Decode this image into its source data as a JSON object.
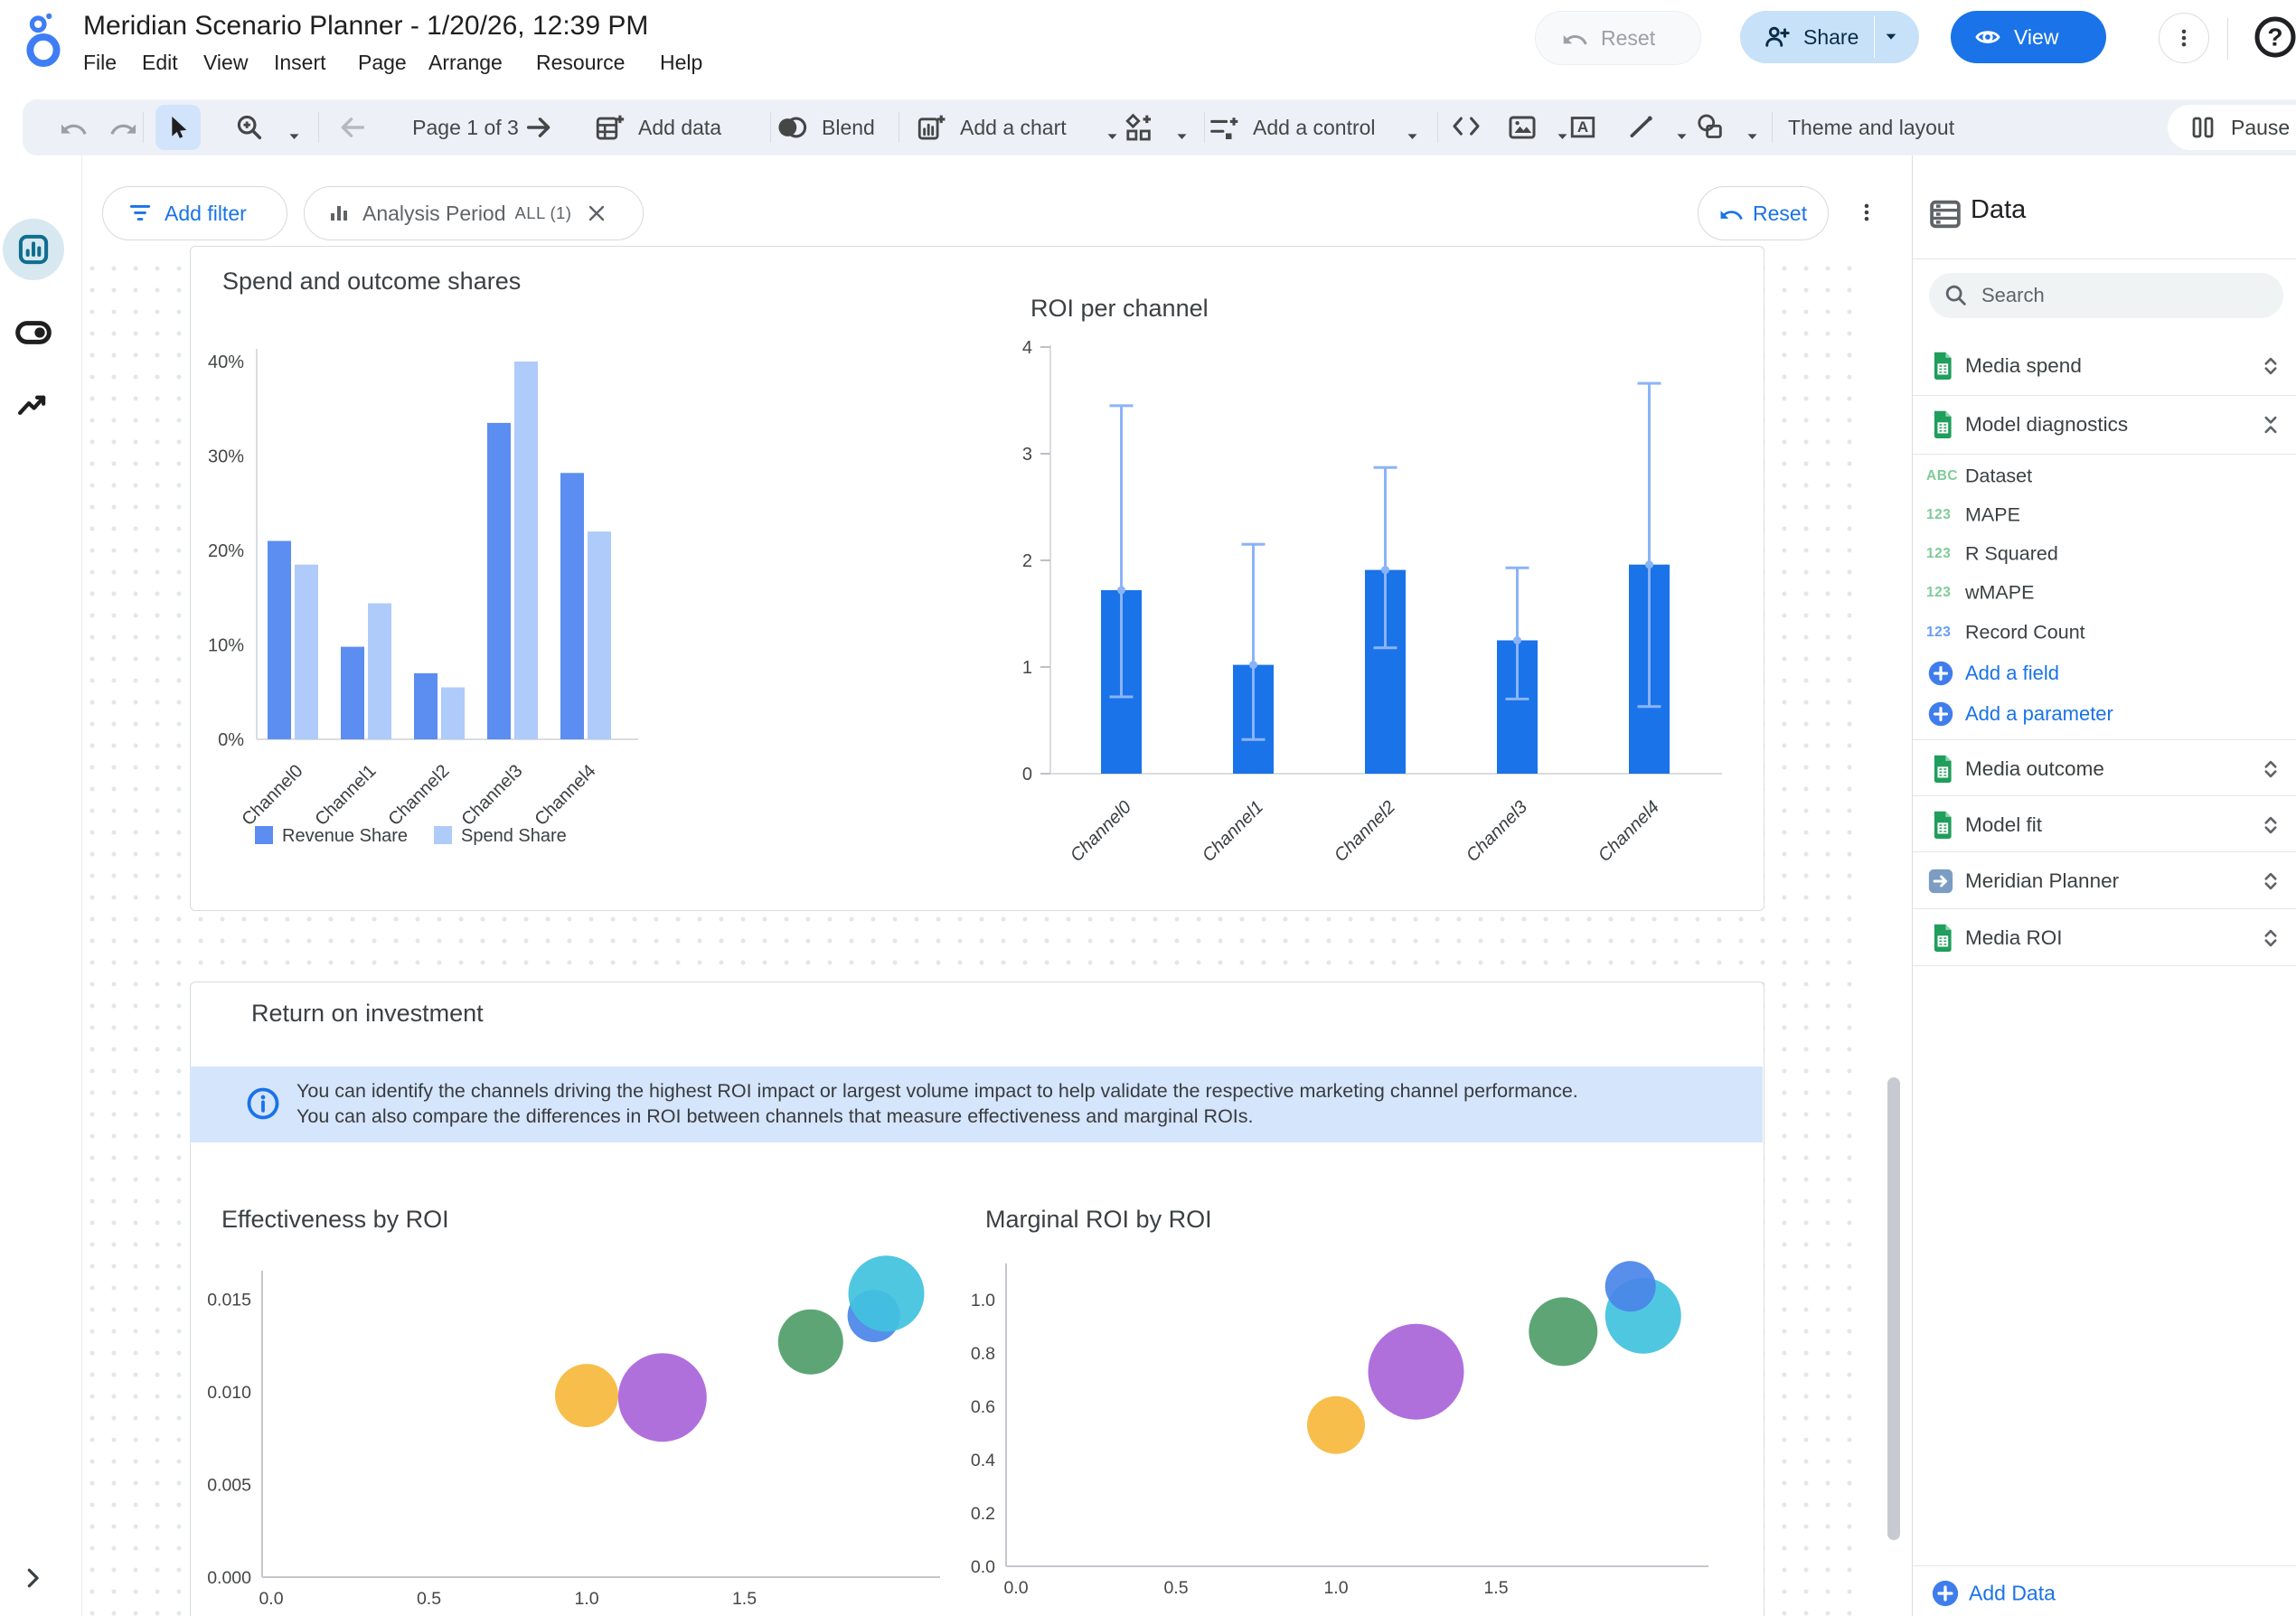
{
  "app": {
    "logo": "looker-studio-logo",
    "title": "Meridian Scenario Planner - 1/20/26, 12:39 PM",
    "menu": [
      "File",
      "Edit",
      "View",
      "Insert",
      "Page",
      "Arrange",
      "Resource",
      "Help"
    ],
    "reset_label": "Reset",
    "share_label": "Share",
    "view_label": "View",
    "help_label": "?"
  },
  "toolbar": {
    "page_indicator": "Page 1 of 3",
    "add_data_label": "Add data",
    "blend_label": "Blend",
    "add_chart_label": "Add a chart",
    "add_control_label": "Add a control",
    "theme_label": "Theme and layout",
    "pause_label": "Pause u"
  },
  "filter_bar": {
    "add_filter_label": "Add filter",
    "filter_chip": {
      "name": "Analysis Period",
      "badge": "ALL (1)"
    },
    "reset_label": "Reset"
  },
  "report": {
    "section_title": "Return on investment",
    "info_text": "You can identify the channels driving the highest ROI impact or largest volume impact to help validate the respective marketing channel performance. You can also compare the differences in ROI between channels that measure effectiveness and marginal ROIs."
  },
  "chart_data": [
    {
      "type": "bar",
      "title": "Spend and outcome shares",
      "categories": [
        "Channel0",
        "Channel1",
        "Channel2",
        "Channel3",
        "Channel4"
      ],
      "series": [
        {
          "name": "Revenue Share",
          "color": "#5C8DF0",
          "values": [
            21,
            9.8,
            7,
            33.5,
            28.2
          ]
        },
        {
          "name": "Spend Share",
          "color": "#AECBFA",
          "values": [
            18.5,
            14.4,
            5.5,
            40,
            22
          ]
        }
      ],
      "yticks": [
        {
          "label": "0%",
          "v": 0
        },
        {
          "label": "10%",
          "v": 10
        },
        {
          "label": "20%",
          "v": 20
        },
        {
          "label": "30%",
          "v": 30
        },
        {
          "label": "40%",
          "v": 40
        }
      ],
      "ylim": [
        0,
        43
      ],
      "legend_position": "bottom"
    },
    {
      "type": "bar",
      "title": "ROI per channel",
      "categories": [
        "Channel0",
        "Channel1",
        "Channel2",
        "Channel3",
        "Channel4"
      ],
      "series": [
        {
          "name": "ROI",
          "color": "#1A73E8",
          "values": [
            1.72,
            1.02,
            1.91,
            1.25,
            1.96
          ]
        }
      ],
      "error_bars": {
        "color": "#8AB4F8",
        "low": [
          0.72,
          0.32,
          1.18,
          0.7,
          0.63
        ],
        "high": [
          3.45,
          2.15,
          2.87,
          1.93,
          3.66
        ]
      },
      "yticks": [
        {
          "label": "0",
          "v": 0
        },
        {
          "label": "1",
          "v": 1
        },
        {
          "label": "2",
          "v": 2
        },
        {
          "label": "3",
          "v": 3
        },
        {
          "label": "4",
          "v": 4
        }
      ],
      "ylim": [
        0,
        4
      ]
    },
    {
      "type": "scatter",
      "title": "Effectiveness by ROI",
      "xlim": [
        0,
        2.1
      ],
      "ylim": [
        0,
        0.0168
      ],
      "xticks": [
        {
          "label": "0.0",
          "v": 0
        },
        {
          "label": "0.5",
          "v": 0.5
        },
        {
          "label": "1.0",
          "v": 1.0
        },
        {
          "label": "1.5",
          "v": 1.5
        }
      ],
      "yticks": [
        {
          "label": "0.000",
          "v": 0
        },
        {
          "label": "0.005",
          "v": 0.005
        },
        {
          "label": "0.010",
          "v": 0.01
        },
        {
          "label": "0.015",
          "v": 0.015
        }
      ],
      "points": [
        {
          "x": 1.0,
          "y": 0.0098,
          "r": 35,
          "color": "#F6B93D"
        },
        {
          "x": 1.24,
          "y": 0.0097,
          "r": 49,
          "color": "#A964D9"
        },
        {
          "x": 1.71,
          "y": 0.0127,
          "r": 36,
          "color": "#4F9D69"
        },
        {
          "x": 1.91,
          "y": 0.0141,
          "r": 29,
          "color": "#4A86E8"
        },
        {
          "x": 1.95,
          "y": 0.0153,
          "r": 42,
          "color": "#41C2DE"
        }
      ]
    },
    {
      "type": "scatter",
      "title": "Marginal ROI by ROI",
      "xlim": [
        0,
        2.1
      ],
      "ylim": [
        0,
        1.12
      ],
      "xticks": [
        {
          "label": "0.0",
          "v": 0
        },
        {
          "label": "0.5",
          "v": 0.5
        },
        {
          "label": "1.0",
          "v": 1.0
        },
        {
          "label": "1.5",
          "v": 1.5
        }
      ],
      "yticks": [
        {
          "label": "0.0",
          "v": 0
        },
        {
          "label": "0.2",
          "v": 0.2
        },
        {
          "label": "0.4",
          "v": 0.4
        },
        {
          "label": "0.6",
          "v": 0.6
        },
        {
          "label": "0.8",
          "v": 0.8
        },
        {
          "label": "1.0",
          "v": 1.0
        }
      ],
      "points": [
        {
          "x": 1.0,
          "y": 0.53,
          "r": 32,
          "color": "#F6B93D"
        },
        {
          "x": 1.25,
          "y": 0.73,
          "r": 53,
          "color": "#A964D9"
        },
        {
          "x": 1.71,
          "y": 0.88,
          "r": 38,
          "color": "#4F9D69"
        },
        {
          "x": 1.96,
          "y": 0.94,
          "r": 42,
          "color": "#41C2DE"
        },
        {
          "x": 1.92,
          "y": 1.05,
          "r": 28,
          "color": "#4A86E8"
        }
      ]
    }
  ],
  "data_panel": {
    "title": "Data",
    "search_placeholder": "Search",
    "sources": [
      {
        "name": "Media spend",
        "icon": "sheets-icon",
        "expanded": false
      },
      {
        "name": "Model diagnostics",
        "icon": "sheets-icon",
        "expanded": true
      },
      {
        "name": "Media outcome",
        "icon": "sheets-icon",
        "expanded": false
      },
      {
        "name": "Model fit",
        "icon": "sheets-icon",
        "expanded": false
      },
      {
        "name": "Meridian Planner",
        "icon": "connector-icon",
        "expanded": false
      },
      {
        "name": "Media ROI",
        "icon": "sheets-icon",
        "expanded": false
      }
    ],
    "fields": [
      {
        "name": "Dataset",
        "badge": "ABC",
        "badge_color": "#7FCB98"
      },
      {
        "name": "MAPE",
        "badge": "123",
        "badge_color": "#7FCB98"
      },
      {
        "name": "R Squared",
        "badge": "123",
        "badge_color": "#7FCB98"
      },
      {
        "name": "wMAPE",
        "badge": "123",
        "badge_color": "#7FCB98"
      },
      {
        "name": "Record Count",
        "badge": "123",
        "badge_color": "#669DF6"
      }
    ],
    "add_field_label": "Add a field",
    "add_parameter_label": "Add a parameter",
    "add_data_label": "Add Data"
  },
  "colors": {
    "accent": "#1A73E8",
    "toolbar_bg": "#EDF1F7",
    "selected_tool_bg": "#D2E3FC",
    "share_bg": "#C6E1F8",
    "banner_bg": "#D5E5FC",
    "border": "#DADCE0",
    "error_bar": "#8AB4F8"
  }
}
